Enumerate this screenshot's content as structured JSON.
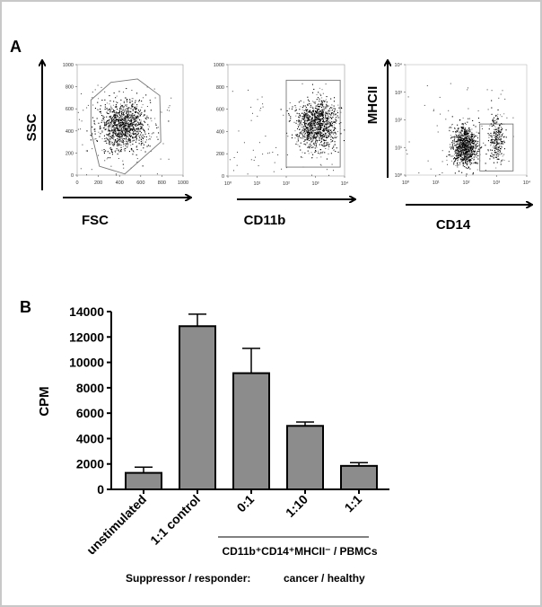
{
  "panels": {
    "a_label": "A",
    "b_label": "B"
  },
  "chart_data": [
    {
      "type": "scatter",
      "title": "",
      "xlabel": "FSC",
      "ylabel": "SSC",
      "xscale": "linear",
      "yscale": "linear",
      "xlim": [
        0,
        1000
      ],
      "ylim": [
        0,
        1000
      ],
      "xticks": [
        "0",
        "200",
        "400",
        "600",
        "800",
        "1000"
      ],
      "yticks": [
        "0",
        "200",
        "400",
        "600",
        "800",
        "1000"
      ],
      "gate": {
        "type": "polygon",
        "points": [
          [
            130,
            680
          ],
          [
            320,
            840
          ],
          [
            570,
            870
          ],
          [
            780,
            720
          ],
          [
            790,
            300
          ],
          [
            450,
            10
          ],
          [
            210,
            80
          ],
          [
            130,
            400
          ]
        ]
      },
      "population": {
        "center": [
          430,
          450
        ],
        "spread": [
          110,
          110
        ],
        "count": 1100
      }
    },
    {
      "type": "scatter",
      "title": "",
      "xlabel": "CD11b",
      "ylabel": "",
      "xscale": "log",
      "yscale": "linear",
      "xlim": [
        0,
        4
      ],
      "ylim": [
        0,
        1000
      ],
      "xticks": [
        "10⁰",
        "10¹",
        "10²",
        "10³",
        "10⁴"
      ],
      "yticks": [
        "0",
        "200",
        "400",
        "600",
        "800",
        "1000"
      ],
      "gate": {
        "type": "rect",
        "x": [
          2,
          3.85
        ],
        "y": [
          80,
          860
        ]
      },
      "population": {
        "center": [
          3.05,
          460
        ],
        "spread": [
          0.35,
          110
        ],
        "count": 1100
      }
    },
    {
      "type": "scatter",
      "title": "",
      "xlabel": "CD14",
      "ylabel": "MHCII",
      "xscale": "log",
      "yscale": "log",
      "xlim": [
        0,
        4
      ],
      "ylim": [
        0,
        4
      ],
      "xticks": [
        "10⁰",
        "10¹",
        "10²",
        "10³",
        "10⁴"
      ],
      "yticks": [
        "10⁰",
        "10¹",
        "10²",
        "10³",
        "10⁴"
      ],
      "gate": {
        "type": "rect",
        "x": [
          2.45,
          3.55
        ],
        "y": [
          0.15,
          1.85
        ]
      },
      "population": {
        "center": [
          1.95,
          1.05
        ],
        "spread": [
          0.2,
          0.35
        ],
        "count": 900
      },
      "population2": {
        "center": [
          3.0,
          1.3
        ],
        "spread": [
          0.12,
          0.45
        ],
        "count": 250
      }
    },
    {
      "type": "bar",
      "title": "",
      "xlabel": "",
      "ylabel": "CPM",
      "ylim": [
        0,
        14000
      ],
      "yticks": [
        "0",
        "2000",
        "4000",
        "6000",
        "8000",
        "10000",
        "12000",
        "14000"
      ],
      "categories": [
        "unstimulated",
        "1:1 control",
        "0:1",
        "1:10",
        "1:1"
      ],
      "values": [
        1300,
        12850,
        9150,
        5000,
        1850
      ],
      "error_upper": [
        1750,
        13800,
        11100,
        5300,
        2100
      ],
      "bar_color": "#8c8c8c",
      "group_label": "CD11b⁺CD14⁺MHCII⁻ / PBMCs",
      "footer_left": "Suppressor / responder:",
      "footer_right": "cancer / healthy"
    }
  ]
}
